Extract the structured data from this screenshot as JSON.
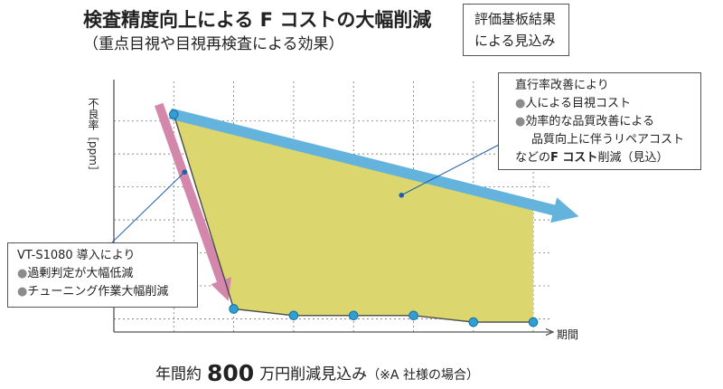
{
  "header": {
    "title": "検査精度向上による F コストの大幅削減",
    "subtitle": "（重点目視や目視再検査による効果）",
    "badge_line1": "評価基板結果",
    "badge_line2": "による見込み"
  },
  "chart_data": {
    "type": "line",
    "xlabel": "期間",
    "ylabel": "不良率［ppm］",
    "grid": true,
    "series": [
      {
        "points": [
          [
            0,
            6.2
          ],
          [
            1,
            0.3
          ],
          [
            2,
            0.1
          ],
          [
            3,
            0.1
          ],
          [
            4,
            0.1
          ],
          [
            5,
            -0.1
          ],
          [
            6,
            -0.1
          ]
        ]
      }
    ],
    "xlim": [
      -1,
      6.3
    ],
    "ylim": [
      -0.4,
      7.2
    ],
    "colors": {
      "line": "#4a4a4a",
      "points": "#2f9fd6",
      "fill": "#dcd66f",
      "arrow_blue": "#64b3dc",
      "arrow_pink": "#d387aa"
    }
  },
  "callouts": {
    "right": {
      "line1": "直行率改善により",
      "bullet1": "人による目視コスト",
      "bullet2": "効率的な品質改善による",
      "line3": "品質向上に伴うリペアコスト",
      "line4_pre": "などの",
      "line4_bold": "F コスト",
      "line4_post": "削減（見込）"
    },
    "left": {
      "line1": "VT-S1080 導入により",
      "bullet1": "過剰判定が大幅低減",
      "bullet2": "チューニング作業大幅削減"
    },
    "bullet_glyph": "●"
  },
  "footer": {
    "pre": "年間約",
    "amount": "800",
    "post": "万円削減見込み",
    "note": "（※A 社様の場合）"
  }
}
